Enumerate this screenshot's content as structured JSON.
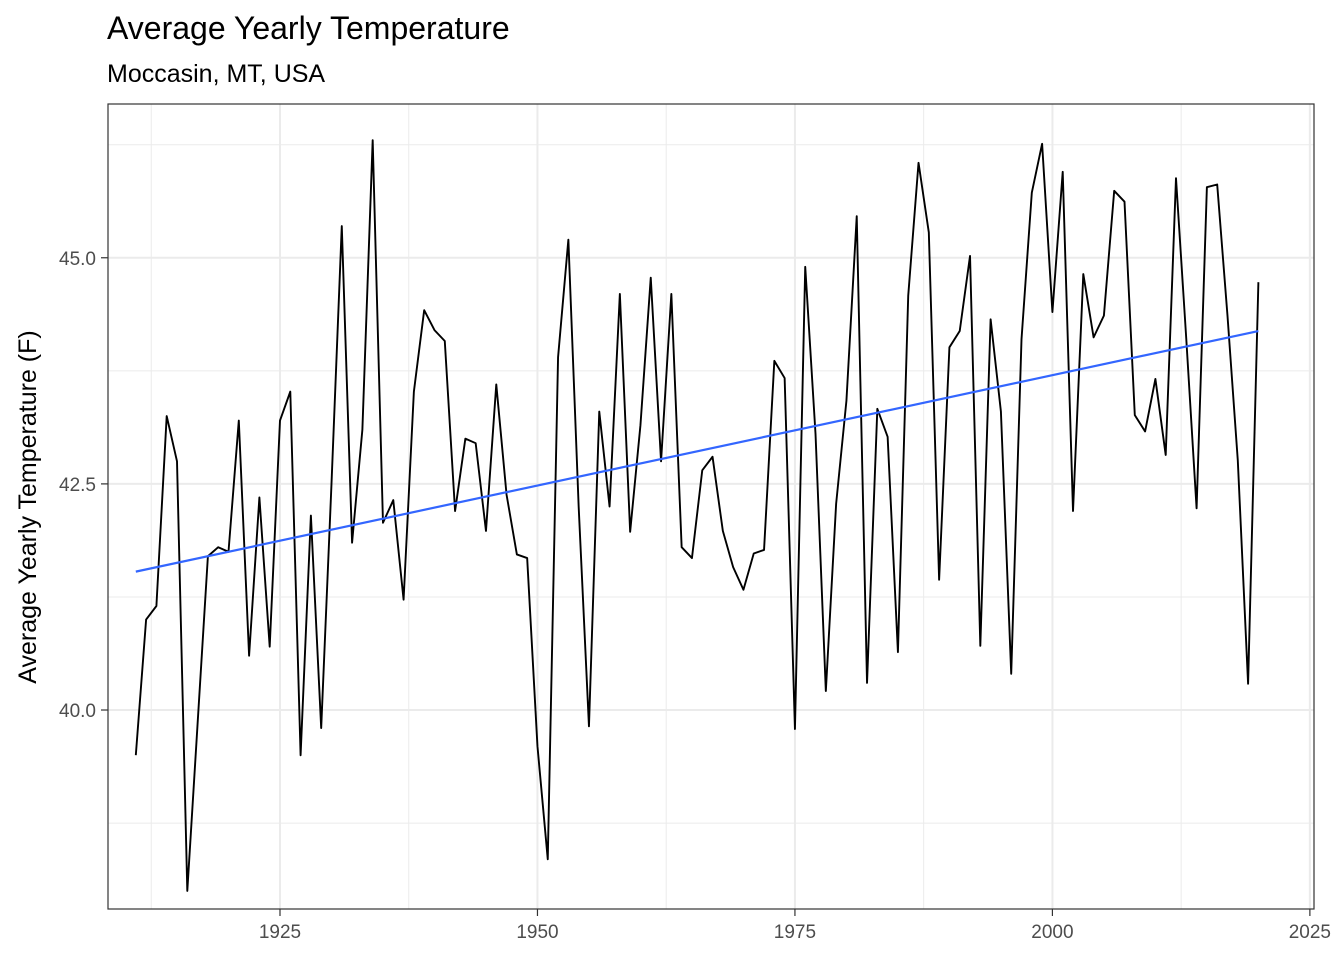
{
  "chart_data": {
    "type": "line",
    "title": "Average Yearly Temperature",
    "subtitle": "Moccasin, MT, USA",
    "xlabel": "",
    "ylabel": "Average Yearly Temperature (F)",
    "xlim": [
      1908.3,
      2025.4
    ],
    "ylim": [
      37.8,
      46.7
    ],
    "x_ticks": [
      1925,
      1950,
      1975,
      2000,
      2025
    ],
    "x_tick_labels": [
      "1925",
      "1950",
      "1975",
      "2000",
      "2025"
    ],
    "y_ticks": [
      40.0,
      42.5,
      45.0
    ],
    "y_tick_labels": [
      "40.0",
      "42.5",
      "45.0"
    ],
    "grid": true,
    "series": [
      {
        "color": "#000000",
        "x": [
          1911,
          1912,
          1913,
          1914,
          1915,
          1916,
          1917,
          1918,
          1919,
          1920,
          1921,
          1922,
          1923,
          1924,
          1925,
          1926,
          1927,
          1928,
          1929,
          1930,
          1931,
          1932,
          1933,
          1934,
          1935,
          1936,
          1937,
          1938,
          1939,
          1940,
          1941,
          1942,
          1943,
          1944,
          1945,
          1946,
          1947,
          1948,
          1949,
          1950,
          1951,
          1952,
          1953,
          1954,
          1955,
          1956,
          1957,
          1958,
          1959,
          1960,
          1961,
          1962,
          1963,
          1964,
          1965,
          1966,
          1967,
          1968,
          1969,
          1970,
          1971,
          1972,
          1973,
          1974,
          1975,
          1976,
          1977,
          1978,
          1979,
          1980,
          1981,
          1982,
          1983,
          1984,
          1985,
          1986,
          1987,
          1988,
          1989,
          1990,
          1991,
          1992,
          1993,
          1994,
          1995,
          1996,
          1997,
          1998,
          1999,
          2000,
          2001,
          2002,
          2003,
          2004,
          2005,
          2006,
          2007,
          2008,
          2009,
          2010,
          2011,
          2012,
          2013,
          2014,
          2015,
          2016,
          2017,
          2018,
          2019,
          2020
        ],
        "y": [
          39.5,
          41.0,
          41.15,
          43.25,
          42.75,
          38.0,
          39.85,
          41.7,
          41.8,
          41.75,
          43.2,
          40.6,
          42.35,
          40.7,
          43.2,
          43.52,
          39.5,
          42.15,
          39.8,
          42.5,
          45.35,
          41.85,
          43.1,
          46.3,
          42.07,
          42.32,
          41.22,
          43.52,
          44.42,
          44.2,
          44.08,
          42.2,
          43.0,
          42.95,
          41.98,
          43.6,
          42.38,
          41.72,
          41.68,
          39.6,
          38.35,
          43.9,
          45.2,
          42.25,
          39.82,
          43.3,
          42.25,
          44.6,
          41.97,
          43.15,
          44.78,
          42.75,
          44.6,
          41.8,
          41.68,
          42.65,
          42.8,
          41.98,
          41.58,
          41.33,
          41.73,
          41.77,
          43.86,
          43.67,
          39.79,
          44.9,
          43.05,
          40.21,
          42.28,
          43.42,
          45.46,
          40.3,
          43.33,
          43.02,
          40.64,
          44.58,
          46.05,
          45.28,
          41.44,
          44.01,
          44.19,
          45.02,
          40.71,
          44.32,
          43.3,
          40.4,
          44.1,
          45.72,
          46.26,
          44.4,
          45.95,
          42.2,
          44.82,
          44.12,
          44.36,
          45.74,
          45.62,
          43.26,
          43.08,
          43.66,
          42.82,
          45.88,
          44.1,
          42.23,
          45.78,
          45.81,
          44.36,
          42.76,
          40.29,
          44.73
        ]
      },
      {
        "color": "#3366FF",
        "x": [
          1911,
          2020
        ],
        "y": [
          41.53,
          44.19
        ]
      }
    ]
  }
}
